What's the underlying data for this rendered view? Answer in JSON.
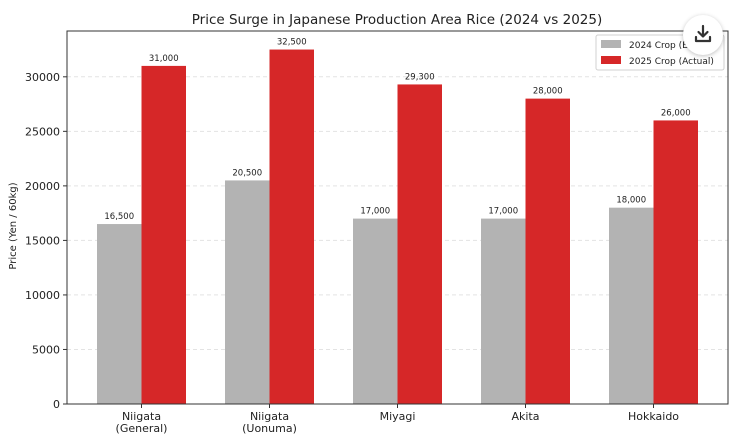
{
  "chart_data": {
    "type": "bar",
    "title": "Price Surge in Japanese Production Area Rice (2024 vs 2025)",
    "xlabel": "",
    "ylabel": "Price (Yen / 60kg)",
    "ylim": [
      0,
      34200
    ],
    "yticks": [
      0,
      5000,
      10000,
      15000,
      20000,
      25000,
      30000
    ],
    "grid": true,
    "legend_position": "top-right",
    "categories": [
      [
        "Niigata",
        "(General)"
      ],
      [
        "Niigata",
        "(Uonuma)"
      ],
      [
        "Miyagi"
      ],
      [
        "Akita"
      ],
      [
        "Hokkaido"
      ]
    ],
    "series": [
      {
        "name": "2024 Crop (E",
        "color": "#b3b3b3",
        "values": [
          16500,
          20500,
          17000,
          17000,
          18000
        ],
        "labels": [
          "16,500",
          "20,500",
          "17,000",
          "17,000",
          "18,000"
        ]
      },
      {
        "name": "2025 Crop (Actual)",
        "color": "#d62728",
        "values": [
          31000,
          32500,
          29300,
          28000,
          26000
        ],
        "labels": [
          "31,000",
          "32,500",
          "29,300",
          "28,000",
          "26,000"
        ]
      }
    ]
  },
  "toolbar": {
    "download_icon": "download-icon"
  }
}
